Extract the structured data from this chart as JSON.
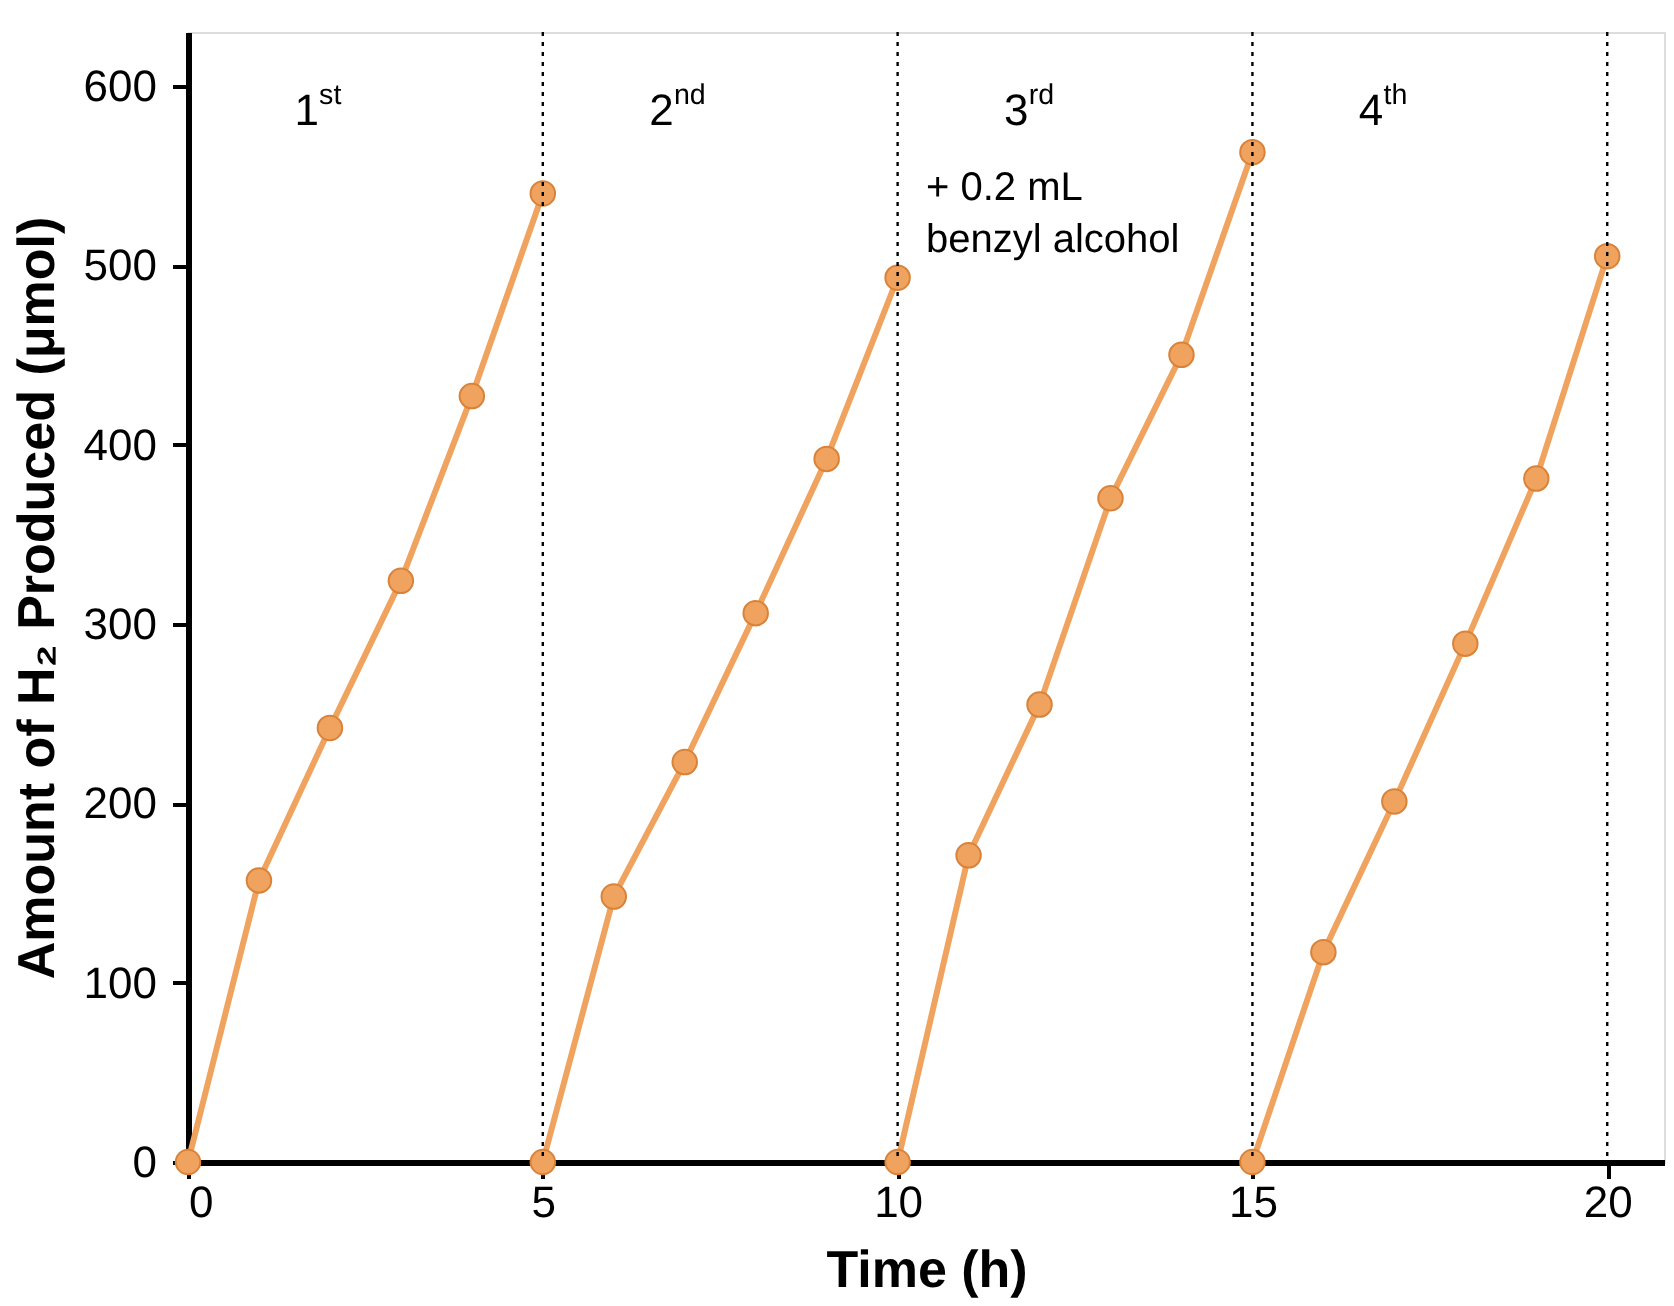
{
  "chart_data": {
    "type": "line",
    "xlabel": "Time (h)",
    "ylabel": "Amount of H₂ Produced (μmol)",
    "series": [
      {
        "color": "#f0a35e",
        "x": [
          0,
          1,
          2,
          3,
          4,
          5
        ],
        "values": [
          0,
          157,
          242,
          324,
          427,
          540
        ]
      },
      {
        "color": "#f0a35e",
        "x": [
          5,
          6,
          7,
          8,
          9,
          10
        ],
        "values": [
          0,
          148,
          223,
          306,
          392,
          493
        ]
      },
      {
        "color": "#f0a35e",
        "x": [
          10,
          11,
          12,
          13,
          14,
          15
        ],
        "values": [
          0,
          171,
          255,
          370,
          450,
          563
        ]
      },
      {
        "color": "#f0a35e",
        "x": [
          15,
          16,
          17,
          18,
          19,
          20
        ],
        "values": [
          0,
          117,
          201,
          289,
          381,
          505
        ]
      }
    ],
    "xlim": [
      0,
      20.8
    ],
    "xticks": [
      0,
      5,
      10,
      15,
      20
    ],
    "ylim": [
      0,
      630
    ],
    "yticks": [
      0,
      100,
      200,
      300,
      400,
      500,
      600
    ],
    "ref_lines": [
      {
        "axis": "x",
        "value": 5,
        "color": "#000000",
        "line_style": "dotted"
      },
      {
        "axis": "x",
        "value": 10,
        "color": "#000000",
        "line_style": "dotted"
      },
      {
        "axis": "x",
        "value": 15,
        "color": "#000000",
        "line_style": "dotted"
      },
      {
        "axis": "x",
        "value": 20,
        "color": "#000000",
        "line_style": "dotted"
      }
    ],
    "annotations": [
      "1$^{st}$",
      "2$^{nd}$",
      "3$^{rd}$",
      "+ 0.2 mL\nbenzyl alcohol",
      "4$^{th}$"
    ],
    "marker": "circle",
    "line_style": "solid",
    "grid": false
  }
}
